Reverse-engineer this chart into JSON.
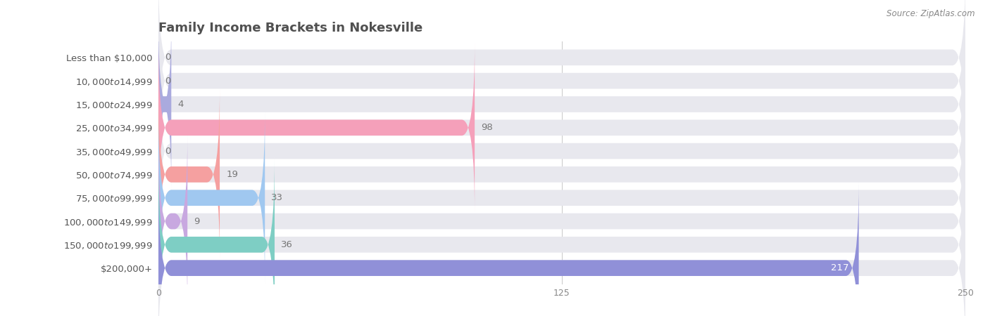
{
  "title": "Family Income Brackets in Nokesville",
  "source": "Source: ZipAtlas.com",
  "categories": [
    "Less than $10,000",
    "$10,000 to $14,999",
    "$15,000 to $24,999",
    "$25,000 to $34,999",
    "$35,000 to $49,999",
    "$50,000 to $74,999",
    "$75,000 to $99,999",
    "$100,000 to $149,999",
    "$150,000 to $199,999",
    "$200,000+"
  ],
  "values": [
    0,
    0,
    4,
    98,
    0,
    19,
    33,
    9,
    36,
    217
  ],
  "bar_colors": [
    "#c9aed9",
    "#7ecec4",
    "#aaaade",
    "#f5a0ba",
    "#f7c89a",
    "#f5a0a0",
    "#a0c8f0",
    "#c8a8e0",
    "#7ecec4",
    "#9090d8"
  ],
  "bar_bg_color": "#e8e8ee",
  "xlim": [
    0,
    250
  ],
  "xticks": [
    0,
    125,
    250
  ],
  "label_color": "#555555",
  "title_color": "#505050",
  "title_fontsize": 13,
  "value_color_inside": "#ffffff",
  "value_color_outside": "#777777",
  "bar_height": 0.68,
  "bar_gap": 1.0,
  "label_fontsize": 9.5,
  "value_fontsize": 9.5
}
